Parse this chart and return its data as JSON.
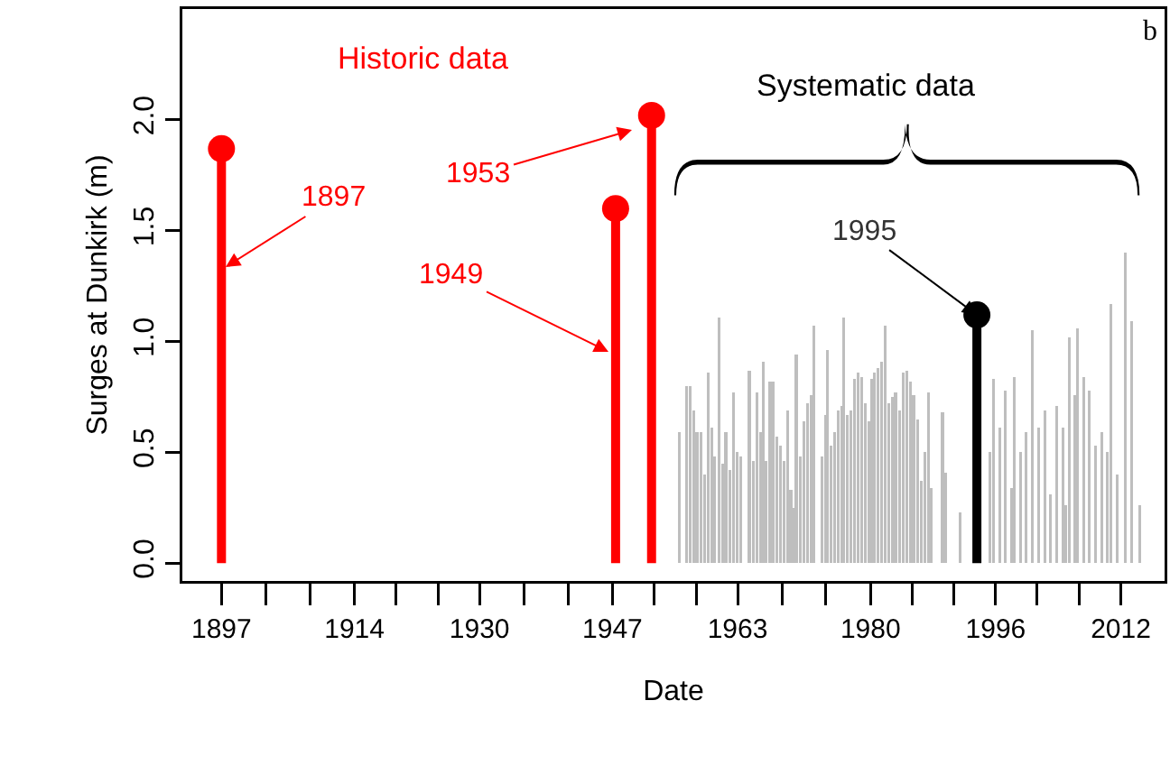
{
  "chart_data": {
    "type": "bar",
    "xlabel": "Date",
    "ylabel": "Surges at Dunkirk (m)",
    "xlim": [
      1892,
      2017.6
    ],
    "ylim": [
      -0.08,
      2.5
    ],
    "xticks": [
      1897,
      {
        "value": 1902.7,
        "label": null
      },
      {
        "value": 1908.3,
        "label": null
      },
      1914,
      {
        "value": 1919.3,
        "label": null
      },
      {
        "value": 1924.7,
        "label": null
      },
      1930,
      {
        "value": 1935.7,
        "label": null
      },
      {
        "value": 1941.3,
        "label": null
      },
      1947,
      {
        "value": 1952.3,
        "label": null
      },
      {
        "value": 1957.7,
        "label": null
      },
      1963,
      {
        "value": 1968.7,
        "label": null
      },
      {
        "value": 1974.3,
        "label": null
      },
      1980,
      {
        "value": 1985.3,
        "label": null
      },
      {
        "value": 1990.7,
        "label": null
      },
      1996,
      {
        "value": 2001.3,
        "label": null
      },
      {
        "value": 2006.7,
        "label": null
      },
      2012
    ],
    "yticks": [
      {
        "value": 0,
        "label": "0.0"
      },
      {
        "value": 0.5,
        "label": "0.5"
      },
      {
        "value": 1,
        "label": "1.0"
      },
      {
        "value": 1.5,
        "label": "1.5"
      },
      {
        "value": 2,
        "label": "2.0"
      }
    ],
    "marker": "circle",
    "series": [
      {
        "color": "#bebebe",
        "x": [
          1955.5,
          1956.45,
          1956.9,
          1957.4,
          1957.8,
          1958.3,
          1958.8,
          1959.2,
          1959.7,
          1960.1,
          1960.6,
          1961.1,
          1961.5,
          1962.0,
          1962.5,
          1962.9,
          1963.4,
          1964.5,
          1965.0,
          1965.5,
          1965.9,
          1966.3,
          1966.6,
          1967.1,
          1967.5,
          1968.0,
          1968.5,
          1968.9,
          1969.4,
          1969.8,
          1970.1,
          1970.5,
          1971.0,
          1971.5,
          1971.9,
          1972.4,
          1972.8,
          1973.8,
          1974.2,
          1974.5,
          1974.9,
          1975.4,
          1975.9,
          1976.3,
          1976.6,
          1977.0,
          1977.5,
          1977.9,
          1978.4,
          1978.9,
          1979.3,
          1979.8,
          1980.1,
          1980.5,
          1980.9,
          1981.4,
          1981.9,
          1982.3,
          1982.8,
          1983.2,
          1983.7,
          1984.2,
          1984.6,
          1985.1,
          1985.5,
          1986.0,
          1986.5,
          1986.9,
          1987.4,
          1987.8,
          1989.2,
          1989.6,
          1991.5,
          1995.3,
          1995.7,
          1996.5,
          1997.2,
          1998.0,
          1998.4,
          1999.2,
          1999.9,
          2000.7,
          2001.5,
          2002.3,
          2003.0,
          2003.8,
          2004.6,
          2005.0,
          2005.4,
          2006.1,
          2006.5,
          2007.3,
          2008.0,
          2008.8,
          2009.6,
          2010.3,
          2010.7,
          2011.5,
          2012.6,
          2013.4,
          2014.4
        ],
        "values": [
          0.59,
          0.8,
          0.8,
          0.69,
          0.59,
          0.59,
          0.4,
          0.86,
          0.61,
          0.48,
          1.11,
          0.45,
          0.59,
          0.42,
          0.77,
          0.5,
          0.48,
          0.87,
          0.46,
          0.77,
          0.59,
          0.91,
          0.46,
          0.82,
          0.82,
          0.57,
          0.53,
          0.46,
          0.69,
          0.33,
          0.25,
          0.94,
          0.48,
          0.64,
          0.72,
          0.76,
          1.07,
          0.48,
          0.67,
          0.96,
          0.53,
          0.59,
          0.69,
          0.71,
          1.11,
          0.67,
          0.69,
          0.83,
          0.86,
          0.84,
          0.72,
          0.64,
          0.83,
          0.86,
          0.88,
          0.91,
          1.07,
          0.72,
          0.75,
          0.77,
          0.69,
          0.86,
          0.87,
          0.82,
          0.76,
          0.65,
          0.37,
          0.5,
          0.77,
          0.34,
          0.68,
          0.41,
          0.23,
          0.5,
          0.83,
          0.61,
          0.78,
          0.34,
          0.84,
          0.5,
          0.59,
          1.05,
          0.61,
          0.69,
          0.31,
          0.71,
          0.61,
          0.26,
          1.02,
          0.76,
          1.06,
          0.84,
          0.78,
          0.53,
          0.59,
          0.5,
          1.17,
          0.4,
          1.4,
          1.09,
          0.26
        ]
      },
      {
        "type": "lollipop",
        "color": "#ff0000",
        "x": [
          1897,
          1947.4,
          1952
        ],
        "values": [
          1.87,
          1.6,
          2.02
        ]
      },
      {
        "type": "lollipop",
        "color": "#000000",
        "x": [
          1993.6
        ],
        "values": [
          1.12
        ]
      }
    ],
    "annotations": [
      "1897",
      "1949",
      "1953",
      {
        "text": "1995",
        "x": 1993.6,
        "y": 1.12
      },
      "Historic data",
      "Systematic data",
      "b"
    ]
  }
}
